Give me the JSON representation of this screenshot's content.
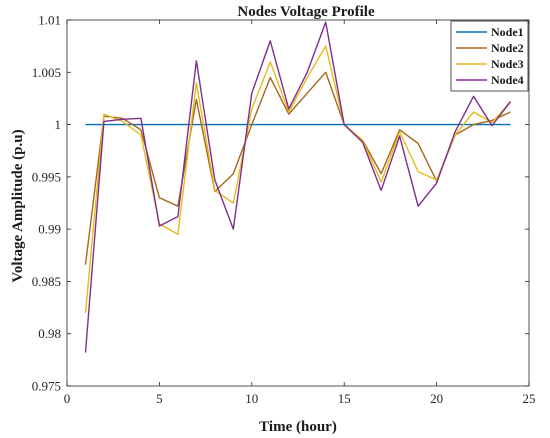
{
  "chart_data": {
    "type": "line",
    "title": "Nodes Voltage Profile",
    "xlabel": "Time (hour)",
    "ylabel": "Voltage Amplitude (p.u)",
    "xlim": [
      0,
      25
    ],
    "ylim": [
      0.975,
      1.01
    ],
    "xticks": [
      "0",
      "5",
      "10",
      "15",
      "20",
      "25"
    ],
    "yticks": [
      "0.975",
      "0.98",
      "0.985",
      "0.99",
      "0.995",
      "1",
      "1.005",
      "1.01"
    ],
    "grid": false,
    "legend_position": "top-right",
    "x": [
      1,
      2,
      3,
      4,
      5,
      6,
      7,
      8,
      9,
      10,
      11,
      12,
      13,
      14,
      15,
      16,
      17,
      18,
      19,
      20,
      21,
      22,
      23,
      24
    ],
    "series": [
      {
        "name": "Node1",
        "color": "#0072BD",
        "values": [
          1,
          1,
          1,
          1,
          1,
          1,
          1,
          1,
          1,
          1,
          1,
          1,
          1,
          1,
          1,
          1,
          1,
          1,
          1,
          1,
          1,
          1,
          1,
          1
        ]
      },
      {
        "name": "Node2",
        "color": "#A8661B",
        "values": [
          0.9866,
          1.0008,
          1.0006,
          0.9995,
          0.993,
          0.9922,
          1.0024,
          0.9936,
          0.9953,
          1.0,
          1.0045,
          1.001,
          1.003,
          1.005,
          1.0,
          0.9985,
          0.9953,
          0.9995,
          0.9982,
          0.9946,
          0.999,
          1.0,
          1.0004,
          1.0012
        ]
      },
      {
        "name": "Node3",
        "color": "#E3BC1B",
        "values": [
          0.982,
          1.001,
          1.0003,
          0.999,
          0.9905,
          0.9895,
          1.004,
          0.9937,
          0.9925,
          1.0015,
          1.006,
          1.0012,
          1.0045,
          1.0075,
          1.0,
          0.9985,
          0.9945,
          0.9993,
          0.9955,
          0.9947,
          0.999,
          1.0012,
          1.0002,
          1.0022
        ]
      },
      {
        "name": "Node4",
        "color": "#7E2F8E",
        "values": [
          0.9782,
          1.0003,
          1.0005,
          1.0006,
          0.9903,
          0.9912,
          1.0061,
          0.9947,
          0.99,
          1.003,
          1.008,
          1.0015,
          1.005,
          1.0098,
          1.0,
          0.9983,
          0.9937,
          0.9989,
          0.9922,
          0.9944,
          0.9993,
          1.0027,
          0.9999,
          1.0022
        ]
      }
    ]
  }
}
